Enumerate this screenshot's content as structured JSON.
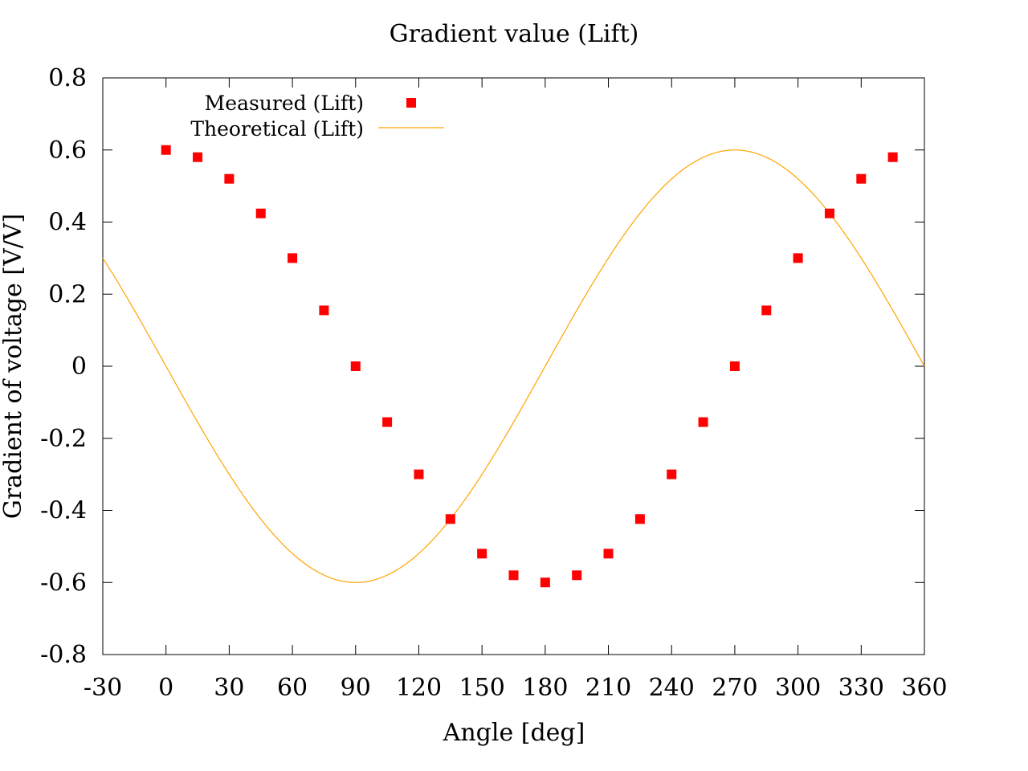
{
  "chart_data": {
    "type": "scatter",
    "title": "Gradient value (Lift)",
    "xlabel": "Angle [deg]",
    "ylabel": "Gradient of voltage [V/V]",
    "xlim": [
      -30,
      360
    ],
    "ylim": [
      -0.8,
      0.8
    ],
    "xticks": [
      "-30",
      "0",
      "30",
      "60",
      "90",
      "120",
      "150",
      "180",
      "210",
      "240",
      "270",
      "300",
      "330",
      "360"
    ],
    "yticks": [
      "0.8",
      "0.6",
      "0.4",
      "0.2",
      "0",
      "-0.2",
      "-0.4",
      "-0.6",
      "-0.8"
    ],
    "grid": false,
    "legend_position": "top-left",
    "series": [
      {
        "name": "Measured (Lift)",
        "kind": "points",
        "marker": "square",
        "color": "#ff0000",
        "x": [
          0,
          15,
          30,
          45,
          60,
          75,
          90,
          105,
          120,
          135,
          150,
          165,
          180,
          195,
          210,
          225,
          240,
          255,
          270,
          285,
          300,
          315,
          330,
          345
        ],
        "y": [
          0.6,
          0.58,
          0.52,
          0.424,
          0.3,
          0.155,
          0.0,
          -0.155,
          -0.3,
          -0.424,
          -0.52,
          -0.58,
          -0.6,
          -0.58,
          -0.52,
          -0.424,
          -0.3,
          -0.155,
          0.0,
          0.155,
          0.3,
          0.424,
          0.52,
          0.58
        ]
      },
      {
        "name": "Theoretical (Lift)",
        "kind": "line",
        "color": "#ffa500",
        "x": [
          -30,
          -15,
          0,
          15,
          30,
          45,
          60,
          75,
          90,
          105,
          120,
          135,
          150,
          165,
          180,
          195,
          210,
          225,
          240,
          255,
          270,
          285,
          300,
          315,
          330,
          345,
          360
        ],
        "y": [
          0.3,
          0.155,
          0.0,
          -0.155,
          -0.3,
          -0.424,
          -0.52,
          -0.58,
          -0.6,
          -0.58,
          -0.52,
          -0.424,
          -0.3,
          -0.155,
          0.0,
          0.155,
          0.3,
          0.424,
          0.52,
          0.58,
          0.6,
          0.58,
          0.52,
          0.424,
          0.3,
          0.155,
          0.0
        ]
      }
    ]
  }
}
